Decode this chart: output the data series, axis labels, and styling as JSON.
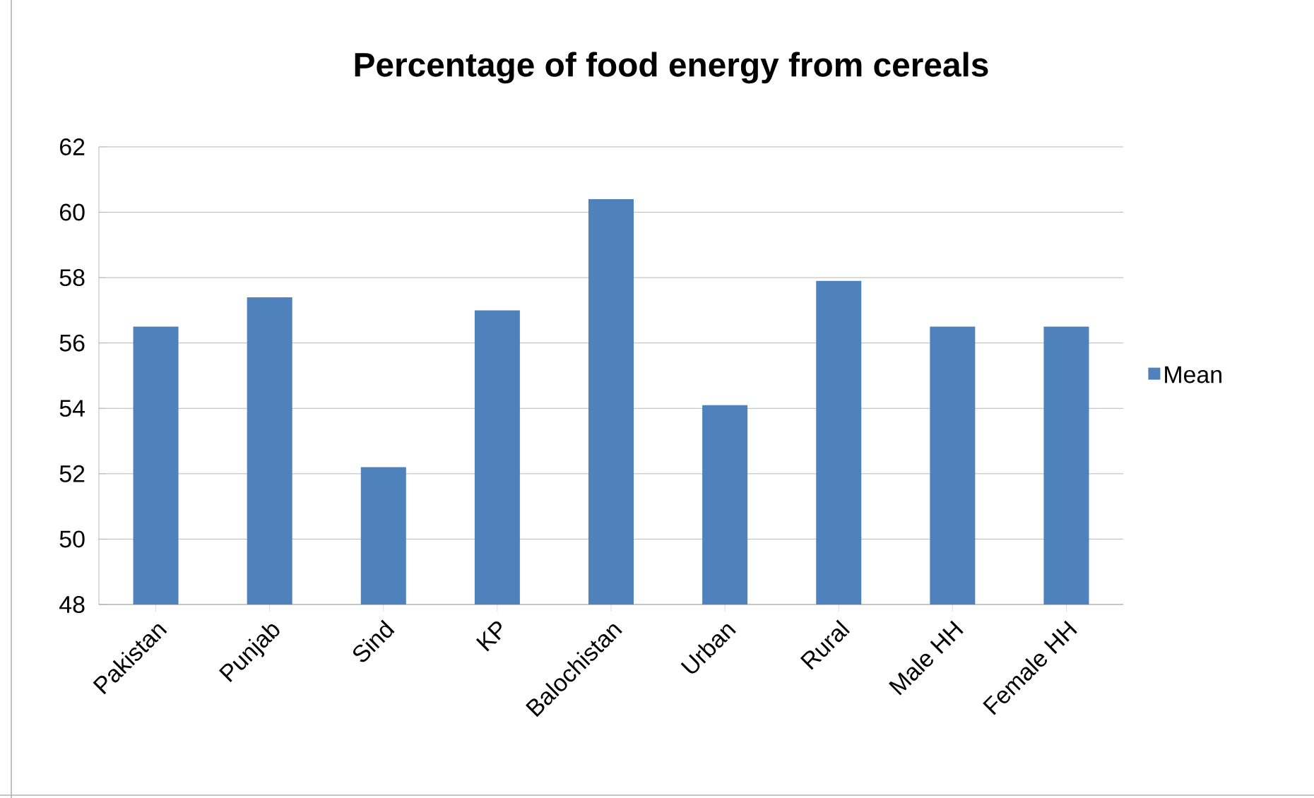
{
  "chart_data": {
    "type": "bar",
    "title": "Percentage of food energy from cereals",
    "categories": [
      "Pakistan",
      "Punjab",
      "Sind",
      "KP",
      "Balochistan",
      "Urban",
      "Rural",
      "Male HH",
      "Female HH"
    ],
    "series": [
      {
        "name": "Mean",
        "color": "#4f81bd",
        "values": [
          56.5,
          57.4,
          52.2,
          57.0,
          60.4,
          54.1,
          57.9,
          56.5,
          56.5
        ]
      }
    ],
    "ylim": [
      48,
      62
    ],
    "yticks": [
      48,
      50,
      52,
      54,
      56,
      58,
      60,
      62
    ],
    "grid": "y",
    "legend": "right"
  }
}
